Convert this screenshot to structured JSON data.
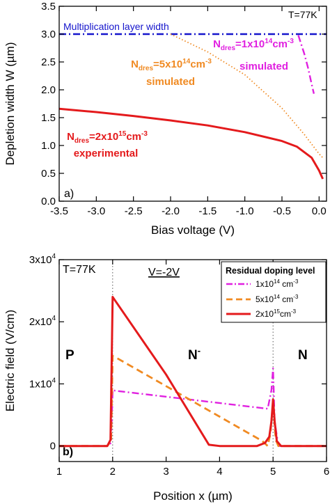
{
  "chart_data": [
    {
      "type": "line",
      "panel_label": "a)",
      "xlabel": "Bias voltage (V)",
      "ylabel": "Depletion width W (µm)",
      "xlim": [
        -3.5,
        0.1
      ],
      "ylim": [
        0.0,
        3.5
      ],
      "xticks": [
        -3.5,
        -3.0,
        -2.5,
        -2.0,
        -1.5,
        -1.0,
        -0.5,
        0.0
      ],
      "xtick_labels": [
        "-3.5",
        "-3.0",
        "-2.5",
        "-2.0",
        "-1.5",
        "-1.0",
        "-0.5",
        "0.0"
      ],
      "yticks": [
        0.0,
        0.5,
        1.0,
        1.5,
        2.0,
        2.5,
        3.0,
        3.5
      ],
      "ytick_labels": [
        "0.0",
        "0.5",
        "1.0",
        "1.5",
        "2.0",
        "2.5",
        "3.0",
        "3.5"
      ],
      "grid": false,
      "annotations": {
        "temperature": "T=77K",
        "mult_layer": "Multiplication layer width",
        "s1_pre": "N",
        "s1_sub": "dres",
        "s1_mid": "=1x10",
        "s1_sup": "14",
        "s1_unit": "cm",
        "s1_unit_sup": "-3",
        "s1_note": "simulated",
        "s2_pre": "N",
        "s2_sub": "dres",
        "s2_mid": "=5x10",
        "s2_sup": "14",
        "s2_unit": "cm",
        "s2_unit_sup": "-3",
        "s2_note": "simulated",
        "s3_pre": "N",
        "s3_sub": "dres",
        "s3_mid": "=2x10",
        "s3_sup": "15",
        "s3_unit": "cm",
        "s3_unit_sup": "-3",
        "s3_note": "experimental"
      },
      "series": [
        {
          "key": "mult",
          "color": "#1515cc",
          "style": "dashdot",
          "x": [
            -3.5,
            0.1
          ],
          "y": [
            3.0,
            3.0
          ]
        },
        {
          "key": "n1e14",
          "color": "#e020e0",
          "style": "dashdot",
          "x": [
            -0.28,
            -0.2,
            -0.15,
            -0.1,
            -0.07
          ],
          "y": [
            2.98,
            2.65,
            2.4,
            2.1,
            1.93
          ]
        },
        {
          "key": "n5e14",
          "color": "#f08a22",
          "style": "dotted",
          "x": [
            -2.0,
            -1.5,
            -1.0,
            -0.5,
            -0.2,
            0.0,
            0.05
          ],
          "y": [
            3.0,
            2.68,
            2.27,
            1.67,
            1.2,
            0.85,
            0.78
          ]
        },
        {
          "key": "n2e15",
          "color": "#e41a1c",
          "style": "solid",
          "x": [
            -3.5,
            -3.0,
            -2.5,
            -2.0,
            -1.5,
            -1.0,
            -0.5,
            -0.3,
            -0.1,
            0.0,
            0.05
          ],
          "y": [
            1.66,
            1.6,
            1.53,
            1.45,
            1.36,
            1.24,
            1.08,
            0.98,
            0.78,
            0.55,
            0.4
          ]
        }
      ]
    },
    {
      "type": "line",
      "panel_label": "b)",
      "xlabel": "Position x (µm)",
      "ylabel": "Electric field (V/cm)",
      "xlim": [
        1,
        6
      ],
      "ylim": [
        -2500,
        30000
      ],
      "xticks": [
        1,
        2,
        3,
        4,
        5,
        6
      ],
      "xtick_labels": [
        "1",
        "2",
        "3",
        "4",
        "5",
        "6"
      ],
      "yticks": [
        0,
        10000,
        20000,
        30000
      ],
      "ytick_labels": [
        {
          "base": "0",
          "sup": ""
        },
        {
          "base": "1x10",
          "sup": "4"
        },
        {
          "base": "2x10",
          "sup": "4"
        },
        {
          "base": "3x10",
          "sup": "4"
        }
      ],
      "grid": false,
      "vlines": [
        2,
        5
      ],
      "annotations": {
        "temperature": "T=77K",
        "voltage": "V=-2V",
        "region_p": "P",
        "region_nminus": "N",
        "region_nminus_sup": "-",
        "region_n": "N"
      },
      "legend": {
        "title": "Residual doping level",
        "placement": "top-right",
        "entries": [
          {
            "key": "n1e14",
            "base": "1x10",
            "sup": "14",
            "unit": " cm",
            "unit_sup": "-3"
          },
          {
            "key": "n5e14",
            "base": "5x10",
            "sup": "14",
            "unit": " cm",
            "unit_sup": "-3"
          },
          {
            "key": "n2e15",
            "base": "2x10",
            "sup": "15",
            "unit": "cm",
            "unit_sup": "-3"
          }
        ]
      },
      "series": [
        {
          "key": "n1e14",
          "color": "#e020e0",
          "style": "dashdot",
          "x": [
            1.0,
            1.9,
            1.97,
            2.0,
            2.05,
            4.9,
            4.97,
            5.0,
            5.03,
            5.1,
            6.0
          ],
          "y": [
            0,
            0,
            500,
            9000,
            8900,
            6000,
            9000,
            12500,
            4000,
            0,
            0
          ]
        },
        {
          "key": "n5e14",
          "color": "#f08a22",
          "style": "dashed",
          "x": [
            1.0,
            1.9,
            1.97,
            2.0,
            2.05,
            4.8,
            4.9,
            4.95,
            5.0,
            5.05,
            5.1,
            6.0
          ],
          "y": [
            0,
            0,
            800,
            14500,
            14300,
            800,
            0,
            2000,
            7000,
            1000,
            0,
            0
          ]
        },
        {
          "key": "n2e15",
          "color": "#e41a1c",
          "style": "solid",
          "x": [
            1.0,
            1.9,
            1.96,
            2.0,
            3.0,
            3.8,
            4.0,
            4.7,
            4.85,
            4.93,
            4.97,
            5.0,
            5.03,
            5.07,
            5.15,
            6.0
          ],
          "y": [
            0,
            0,
            1000,
            24000,
            11500,
            200,
            0,
            0,
            500,
            1500,
            4000,
            7500,
            4000,
            800,
            0,
            0
          ]
        }
      ]
    }
  ]
}
